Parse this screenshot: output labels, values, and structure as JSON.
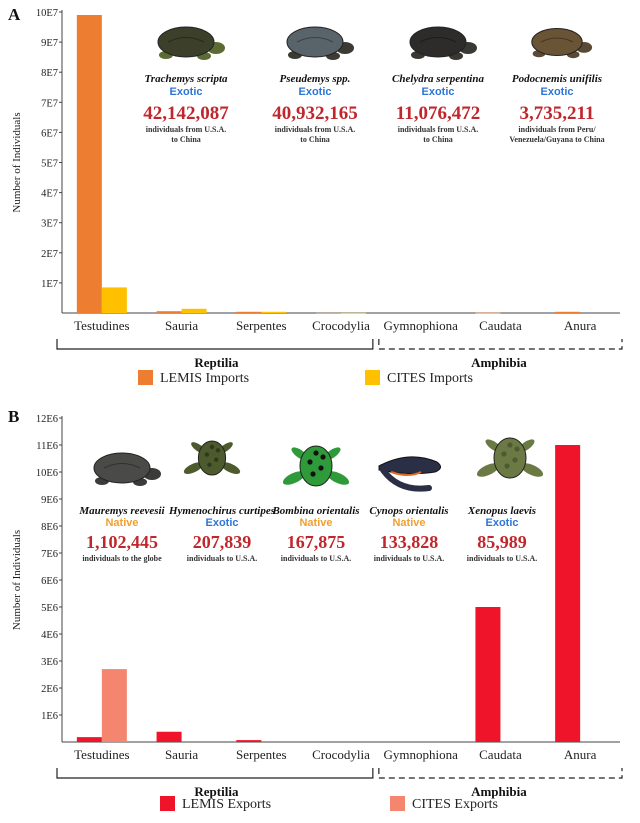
{
  "colors": {
    "lemis_imports": "#ed7d31",
    "cites_imports": "#ffc000",
    "lemis_exports": "#f0142a",
    "cites_exports": "#f4866f",
    "native": "#f0a030",
    "exotic": "#2e75d6",
    "count": "#c0272d"
  },
  "chart_data": [
    {
      "panel": "A",
      "type": "bar",
      "ylabel": "Number of Individuals",
      "yticks": [
        "1E7",
        "2E7",
        "3E7",
        "4E7",
        "5E7",
        "6E7",
        "7E7",
        "8E7",
        "9E7",
        "10E7"
      ],
      "ylim": [
        0,
        100000000
      ],
      "categories": [
        "Testudines",
        "Sauria",
        "Serpentes",
        "Crocodylia",
        "Gymnophiona",
        "Caudata",
        "Anura"
      ],
      "groups": [
        {
          "label": "Reptilia",
          "members": [
            "Testudines",
            "Sauria",
            "Serpentes",
            "Crocodylia"
          ]
        },
        {
          "label": "Amphibia",
          "members": [
            "Gymnophiona",
            "Caudata",
            "Anura"
          ]
        }
      ],
      "series": [
        {
          "name": "LEMIS Imports",
          "values": [
            99000000,
            600000,
            400000,
            50000,
            0,
            100000,
            400000
          ]
        },
        {
          "name": "CITES Imports",
          "values": [
            8500000,
            1400000,
            400000,
            50000,
            0,
            0,
            0
          ]
        }
      ],
      "legend": "bottom",
      "annotations": [
        {
          "species": "Trachemys scripta",
          "status": "Exotic",
          "count": "42,142,087",
          "note": [
            "individuals from U.S.A.",
            "to China"
          ]
        },
        {
          "species": "Pseudemys spp.",
          "status": "Exotic",
          "count": "40,932,165",
          "note": [
            "individuals from U.S.A.",
            "to China"
          ]
        },
        {
          "species": "Chelydra serpentina",
          "status": "Exotic",
          "count": "11,076,472",
          "note": [
            "individuals from U.S.A.",
            "to China"
          ]
        },
        {
          "species": "Podocnemis unifilis",
          "status": "Exotic",
          "count": "3,735,211",
          "note": [
            "individuals from Peru/",
            "Venezuela/Guyana to China"
          ]
        }
      ]
    },
    {
      "panel": "B",
      "type": "bar",
      "ylabel": "Number of Individuals",
      "yticks": [
        "1E6",
        "2E6",
        "3E6",
        "4E6",
        "5E6",
        "6E6",
        "7E6",
        "8E6",
        "9E6",
        "10E6",
        "11E6",
        "12E6"
      ],
      "ylim": [
        0,
        12000000
      ],
      "categories": [
        "Testudines",
        "Sauria",
        "Serpentes",
        "Crocodylia",
        "Gymnophiona",
        "Caudata",
        "Anura"
      ],
      "groups": [
        {
          "label": "Reptilia",
          "members": [
            "Testudines",
            "Sauria",
            "Serpentes",
            "Crocodylia"
          ]
        },
        {
          "label": "Amphibia",
          "members": [
            "Gymnophiona",
            "Caudata",
            "Anura"
          ]
        }
      ],
      "series": [
        {
          "name": "LEMIS Exports",
          "values": [
            180000,
            380000,
            70000,
            0,
            0,
            5000000,
            11000000
          ]
        },
        {
          "name": "CITES Exports",
          "values": [
            2700000,
            0,
            0,
            0,
            0,
            0,
            0
          ]
        }
      ],
      "legend": "bottom",
      "annotations": [
        {
          "species": "Mauremys reevesii",
          "status": "Native",
          "count": "1,102,445",
          "note": [
            "individuals to the globe"
          ]
        },
        {
          "species": "Hymenochirus curtipes",
          "status": "Exotic",
          "count": "207,839",
          "note": [
            "individuals to U.S.A."
          ]
        },
        {
          "species": "Bombina orientalis",
          "status": "Native",
          "count": "167,875",
          "note": [
            "individuals to U.S.A."
          ]
        },
        {
          "species": "Cynops orientalis",
          "status": "Native",
          "count": "133,828",
          "note": [
            "individuals to U.S.A."
          ]
        },
        {
          "species": "Xenopus laevis",
          "status": "Exotic",
          "count": "85,989",
          "note": [
            "individuals to U.S.A."
          ]
        }
      ]
    }
  ]
}
